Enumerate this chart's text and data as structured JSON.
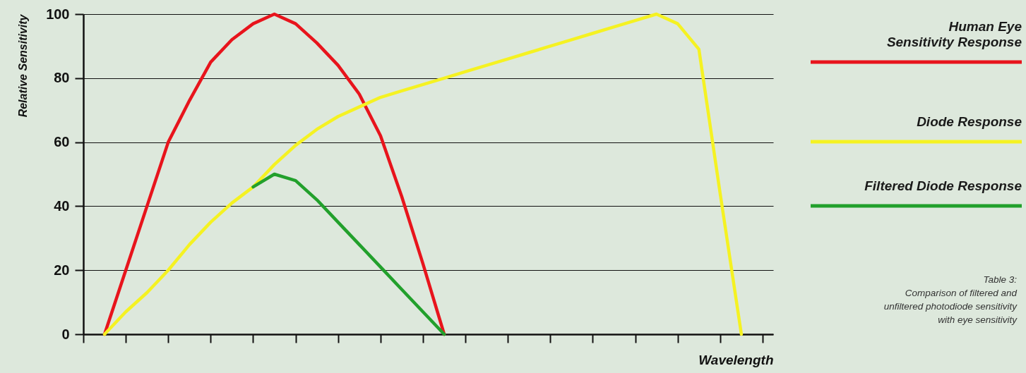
{
  "chart_data": {
    "type": "line",
    "xlabel": "Wavelength",
    "ylabel": "Relative Sensitivity",
    "categories": [
      null,
      null,
      null,
      null,
      null,
      null,
      null,
      null,
      null,
      null,
      null,
      null,
      null,
      null,
      null,
      null,
      null,
      null,
      null,
      null,
      null,
      null,
      null,
      null,
      null,
      null,
      null,
      null,
      null,
      null,
      null,
      null,
      null
    ],
    "ylim": [
      0,
      100
    ],
    "yticks": [
      0,
      20,
      40,
      60,
      80,
      100
    ],
    "grid": "y",
    "legend": "right",
    "tick_labels": "y",
    "line_style": "solid",
    "marker": "none",
    "series": [
      {
        "name": "Human Eye\nSensitivity Response",
        "color": "#e8141c",
        "values": [
          null,
          0,
          20,
          40,
          60,
          73,
          85,
          92,
          97,
          100,
          97,
          91,
          84,
          75,
          62,
          43,
          22,
          0,
          null,
          null,
          null,
          null,
          null,
          null,
          null,
          null,
          null,
          null,
          null,
          null,
          null,
          null,
          null
        ]
      },
      {
        "name": "Diode Response",
        "color": "#f5f222",
        "values": [
          null,
          0,
          7,
          13,
          20,
          28,
          35,
          41,
          46,
          53,
          59,
          64,
          68,
          71,
          74,
          76,
          78,
          80,
          82,
          84,
          86,
          88,
          90,
          92,
          94,
          96,
          98,
          100,
          97,
          89,
          44,
          0,
          null
        ]
      },
      {
        "name": "Filtered Diode Response",
        "color": "#22a02c",
        "values": [
          null,
          null,
          null,
          null,
          null,
          null,
          null,
          null,
          46,
          50,
          48,
          42,
          35,
          28,
          21,
          14,
          7,
          0,
          null,
          null,
          null,
          null,
          null,
          null,
          null,
          null,
          null,
          null,
          null,
          null,
          null,
          null,
          null
        ]
      }
    ],
    "annotations": [
      "Table 3:\nComparison of filtered and\nunfiltered photodiode sensitivity\nwith eye sensitivity"
    ]
  }
}
